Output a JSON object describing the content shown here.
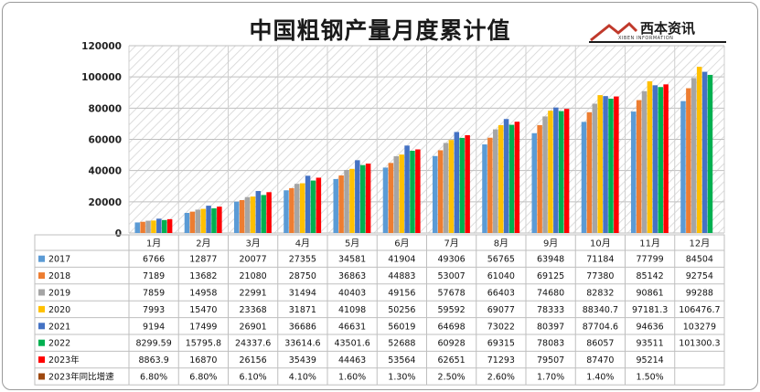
{
  "logo": {
    "name": "西本资讯",
    "sub": "XIBEN INFORMATION"
  },
  "colors": {
    "2017": "#5b9bd5",
    "2018": "#ed7d31",
    "2019": "#a5a5a5",
    "2020": "#ffc000",
    "2021": "#4472c4",
    "2022": "#00b050",
    "2023年": "#ff0000",
    "2023年同比增速": "#9e480e"
  },
  "chart_data": {
    "type": "bar",
    "title": "中国粗钢产量月度累计值",
    "categories": [
      "1月",
      "2月",
      "3月",
      "4月",
      "5月",
      "6月",
      "7月",
      "8月",
      "9月",
      "10月",
      "11月",
      "12月"
    ],
    "ylim": [
      0,
      120000
    ],
    "yticks": [
      "0",
      "20000",
      "40000",
      "60000",
      "80000",
      "100000",
      "120000"
    ],
    "grid": true,
    "legend": "table-below",
    "series": [
      {
        "name": "2017",
        "values": [
          6766,
          12877,
          20077,
          27355,
          34581,
          41904,
          49306,
          56765,
          63948,
          71184,
          77799,
          84504
        ],
        "labels": [
          "6766",
          "12877",
          "20077",
          "27355",
          "34581",
          "41904",
          "49306",
          "56765",
          "63948",
          "71184",
          "77799",
          "84504"
        ]
      },
      {
        "name": "2018",
        "values": [
          7189,
          13682,
          21080,
          28750,
          36863,
          44883,
          53007,
          61040,
          69125,
          77380,
          85142,
          92754
        ],
        "labels": [
          "7189",
          "13682",
          "21080",
          "28750",
          "36863",
          "44883",
          "53007",
          "61040",
          "69125",
          "77380",
          "85142",
          "92754"
        ]
      },
      {
        "name": "2019",
        "values": [
          7859,
          14958,
          22991,
          31494,
          40403,
          49156,
          57678,
          66403,
          74680,
          82832,
          90861,
          99288
        ],
        "labels": [
          "7859",
          "14958",
          "22991",
          "31494",
          "40403",
          "49156",
          "57678",
          "66403",
          "74680",
          "82832",
          "90861",
          "99288"
        ]
      },
      {
        "name": "2020",
        "values": [
          7993,
          15470,
          23368,
          31871,
          41098,
          50256,
          59592,
          69077,
          78333,
          88340.7,
          97181.3,
          106476.7
        ],
        "labels": [
          "7993",
          "15470",
          "23368",
          "31871",
          "41098",
          "50256",
          "59592",
          "69077",
          "78333",
          "88340.7",
          "97181.3",
          "106476.7"
        ]
      },
      {
        "name": "2021",
        "values": [
          9194,
          17499,
          26901,
          36686,
          46631,
          56019,
          64698,
          73022,
          80397,
          87704.6,
          94636,
          103279
        ],
        "labels": [
          "9194",
          "17499",
          "26901",
          "36686",
          "46631",
          "56019",
          "64698",
          "73022",
          "80397",
          "87704.6",
          "94636",
          "103279"
        ]
      },
      {
        "name": "2022",
        "values": [
          8299.59,
          15795.8,
          24337.6,
          33614.6,
          43501.6,
          52688,
          60928,
          69315,
          78083,
          86057,
          93511,
          101300.3
        ],
        "labels": [
          "8299.59",
          "15795.8",
          "24337.6",
          "33614.6",
          "43501.6",
          "52688",
          "60928",
          "69315",
          "78083",
          "86057",
          "93511",
          "101300.3"
        ]
      },
      {
        "name": "2023年",
        "values": [
          8863.9,
          16870,
          26156,
          35439,
          44463,
          53564,
          62651,
          71293,
          79507,
          87470,
          95214,
          null
        ],
        "labels": [
          "8863.9",
          "16870",
          "26156",
          "35439",
          "44463",
          "53564",
          "62651",
          "71293",
          "79507",
          "87470",
          "95214",
          ""
        ]
      },
      {
        "name": "2023年同比增速",
        "values": [
          6.8,
          6.8,
          6.1,
          4.1,
          1.6,
          1.3,
          2.5,
          2.6,
          1.7,
          1.4,
          1.5,
          null
        ],
        "labels": [
          "6.80%",
          "6.80%",
          "6.10%",
          "4.10%",
          "1.60%",
          "1.30%",
          "2.50%",
          "2.60%",
          "1.70%",
          "1.40%",
          "1.50%",
          ""
        ],
        "table_only": true
      }
    ]
  }
}
